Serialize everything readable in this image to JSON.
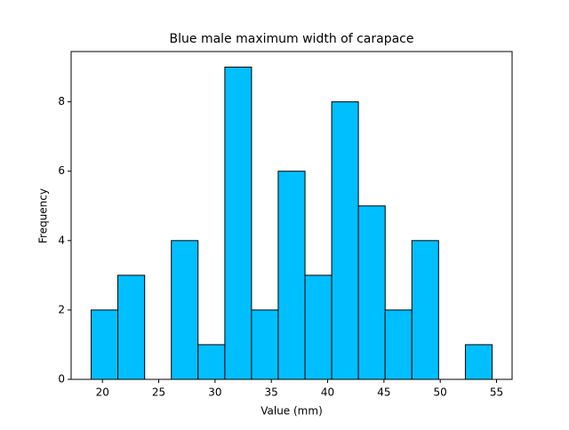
{
  "chart_data": {
    "type": "histogram",
    "title": "Blue male maximum width of carapace",
    "x_label": "Value (mm)",
    "y_label": "Frequency",
    "bins": [
      19.0,
      21.37,
      23.75,
      26.12,
      28.49,
      30.87,
      33.24,
      35.61,
      37.99,
      40.36,
      42.73,
      45.11,
      47.48,
      49.85,
      52.23,
      54.6
    ],
    "counts": [
      2,
      3,
      0,
      4,
      1,
      9,
      2,
      6,
      3,
      8,
      5,
      2,
      4,
      0,
      1
    ],
    "color": "#00bfff",
    "edgecolor": "#000000",
    "xlim": [
      17.22,
      56.38
    ],
    "xticks": [
      20,
      25,
      30,
      35,
      40,
      45,
      50,
      55
    ],
    "ylim": [
      0,
      9.45
    ],
    "yticks": [
      0,
      2,
      4,
      6,
      8
    ]
  }
}
